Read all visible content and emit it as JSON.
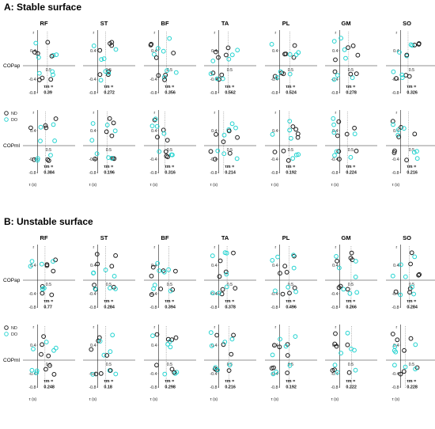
{
  "chart_data": {
    "type": "scatter",
    "muscles": [
      "RF",
      "ST",
      "BF",
      "TA",
      "PL",
      "GM",
      "SO"
    ],
    "rows": [
      "COPap",
      "COPml"
    ],
    "legend": [
      "ND",
      "DO"
    ],
    "colors": {
      "ND": "#1a1a1a",
      "DO": "#22d3d0"
    },
    "axis_labels": {
      "y": "r",
      "x": "τ (s)"
    },
    "yticks": [
      "0.4",
      "-0.4",
      "-0.8"
    ],
    "xtick": "0.5",
    "tm_label": "τm =",
    "panels": [
      {
        "label": "A: Stable surface",
        "rows": [
          {
            "name": "COPap",
            "tm_values": [
              "0.39",
              "0.272",
              "0.356",
              "0.562",
              "0.524",
              "0.278",
              "0.326"
            ]
          },
          {
            "name": "COPml",
            "tm_values": [
              "0.384",
              "0.196",
              "0.316",
              "0.214",
              "0.192",
              "0.224",
              "0.216"
            ]
          }
        ]
      },
      {
        "label": "B: Unstable surface",
        "rows": [
          {
            "name": "COPap",
            "tm_values": [
              "0.77",
              "0.284",
              "0.394",
              "0.378",
              "0.496",
              "0.266",
              "0.284"
            ]
          },
          {
            "name": "COPml",
            "tm_values": [
              "0.248",
              "0.18",
              "0.298",
              "0.216",
              "0.192",
              "0.222",
              "0.228"
            ]
          }
        ]
      }
    ],
    "grid": false
  }
}
